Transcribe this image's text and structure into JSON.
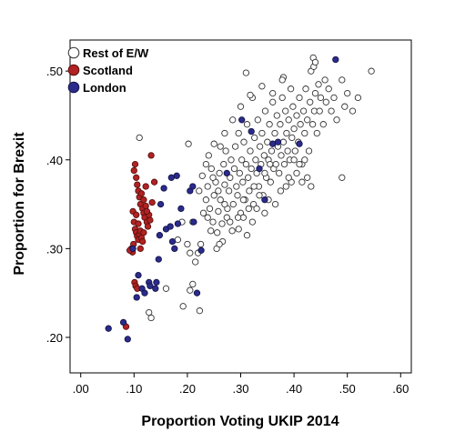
{
  "chart_data": {
    "type": "scatter",
    "title": "",
    "xlabel": "Proportion Voting UKIP 2014",
    "ylabel": "Proportion for Brexit",
    "xlim": [
      -0.02,
      0.62
    ],
    "ylim": [
      0.16,
      0.535
    ],
    "xticks": [
      0.0,
      0.1,
      0.2,
      0.3,
      0.4,
      0.5,
      0.6
    ],
    "xtick_labels": [
      ".00",
      ".10",
      ".20",
      ".30",
      ".40",
      ".50",
      ".60"
    ],
    "yticks": [
      0.2,
      0.3,
      0.4,
      0.5
    ],
    "ytick_labels": [
      ".20",
      ".30",
      ".40",
      ".50"
    ],
    "grid": false,
    "legend_position": "top-left",
    "series": [
      {
        "name": "Rest of E/W",
        "color": "#ffffff",
        "stroke": "#333333",
        "points": [
          [
            0.11,
            0.425
          ],
          [
            0.128,
            0.228
          ],
          [
            0.132,
            0.222
          ],
          [
            0.16,
            0.255
          ],
          [
            0.192,
            0.235
          ],
          [
            0.205,
            0.253
          ],
          [
            0.21,
            0.26
          ],
          [
            0.223,
            0.23
          ],
          [
            0.182,
            0.31
          ],
          [
            0.19,
            0.33
          ],
          [
            0.2,
            0.305
          ],
          [
            0.205,
            0.295
          ],
          [
            0.21,
            0.33
          ],
          [
            0.22,
            0.295
          ],
          [
            0.225,
            0.305
          ],
          [
            0.215,
            0.285
          ],
          [
            0.202,
            0.418
          ],
          [
            0.222,
            0.365
          ],
          [
            0.23,
            0.34
          ],
          [
            0.235,
            0.355
          ],
          [
            0.238,
            0.37
          ],
          [
            0.242,
            0.345
          ],
          [
            0.245,
            0.39
          ],
          [
            0.248,
            0.33
          ],
          [
            0.25,
            0.36
          ],
          [
            0.253,
            0.375
          ],
          [
            0.255,
            0.3
          ],
          [
            0.258,
            0.342
          ],
          [
            0.26,
            0.385
          ],
          [
            0.262,
            0.355
          ],
          [
            0.265,
            0.328
          ],
          [
            0.268,
            0.395
          ],
          [
            0.27,
            0.372
          ],
          [
            0.272,
            0.41
          ],
          [
            0.275,
            0.345
          ],
          [
            0.278,
            0.365
          ],
          [
            0.28,
            0.38
          ],
          [
            0.282,
            0.4
          ],
          [
            0.284,
            0.32
          ],
          [
            0.286,
            0.35
          ],
          [
            0.288,
            0.39
          ],
          [
            0.29,
            0.415
          ],
          [
            0.292,
            0.37
          ],
          [
            0.294,
            0.36
          ],
          [
            0.296,
            0.43
          ],
          [
            0.298,
            0.385
          ],
          [
            0.3,
            0.34
          ],
          [
            0.302,
            0.4
          ],
          [
            0.304,
            0.375
          ],
          [
            0.306,
            0.42
          ],
          [
            0.308,
            0.355
          ],
          [
            0.31,
            0.395
          ],
          [
            0.312,
            0.44
          ],
          [
            0.314,
            0.38
          ],
          [
            0.316,
            0.365
          ],
          [
            0.318,
            0.41
          ],
          [
            0.32,
            0.39
          ],
          [
            0.322,
            0.47
          ],
          [
            0.324,
            0.35
          ],
          [
            0.326,
            0.425
          ],
          [
            0.328,
            0.4
          ],
          [
            0.33,
            0.385
          ],
          [
            0.332,
            0.445
          ],
          [
            0.334,
            0.37
          ],
          [
            0.336,
            0.415
          ],
          [
            0.338,
            0.395
          ],
          [
            0.34,
            0.43
          ],
          [
            0.342,
            0.36
          ],
          [
            0.344,
            0.405
          ],
          [
            0.346,
            0.455
          ],
          [
            0.348,
            0.38
          ],
          [
            0.35,
            0.42
          ],
          [
            0.352,
            0.4
          ],
          [
            0.354,
            0.44
          ],
          [
            0.356,
            0.375
          ],
          [
            0.358,
            0.41
          ],
          [
            0.36,
            0.465
          ],
          [
            0.362,
            0.39
          ],
          [
            0.364,
            0.43
          ],
          [
            0.366,
            0.395
          ],
          [
            0.368,
            0.45
          ],
          [
            0.37,
            0.415
          ],
          [
            0.372,
            0.385
          ],
          [
            0.374,
            0.44
          ],
          [
            0.376,
            0.405
          ],
          [
            0.378,
            0.47
          ],
          [
            0.38,
            0.42
          ],
          [
            0.382,
            0.395
          ],
          [
            0.384,
            0.455
          ],
          [
            0.386,
            0.43
          ],
          [
            0.388,
            0.41
          ],
          [
            0.39,
            0.445
          ],
          [
            0.392,
            0.4
          ],
          [
            0.394,
            0.48
          ],
          [
            0.396,
            0.425
          ],
          [
            0.398,
            0.46
          ],
          [
            0.4,
            0.435
          ],
          [
            0.402,
            0.41
          ],
          [
            0.405,
            0.45
          ],
          [
            0.408,
            0.42
          ],
          [
            0.41,
            0.47
          ],
          [
            0.412,
            0.44
          ],
          [
            0.415,
            0.395
          ],
          [
            0.418,
            0.455
          ],
          [
            0.42,
            0.43
          ],
          [
            0.422,
            0.48
          ],
          [
            0.425,
            0.445
          ],
          [
            0.428,
            0.41
          ],
          [
            0.43,
            0.465
          ],
          [
            0.432,
            0.5
          ],
          [
            0.435,
            0.44
          ],
          [
            0.438,
            0.455
          ],
          [
            0.44,
            0.475
          ],
          [
            0.443,
            0.43
          ],
          [
            0.446,
            0.485
          ],
          [
            0.448,
            0.455
          ],
          [
            0.45,
            0.47
          ],
          [
            0.455,
            0.44
          ],
          [
            0.458,
            0.49
          ],
          [
            0.46,
            0.465
          ],
          [
            0.465,
            0.48
          ],
          [
            0.47,
            0.455
          ],
          [
            0.475,
            0.47
          ],
          [
            0.48,
            0.445
          ],
          [
            0.49,
            0.49
          ],
          [
            0.495,
            0.46
          ],
          [
            0.5,
            0.475
          ],
          [
            0.51,
            0.455
          ],
          [
            0.52,
            0.47
          ],
          [
            0.545,
            0.5
          ],
          [
            0.49,
            0.38
          ],
          [
            0.436,
            0.515
          ],
          [
            0.437,
            0.505
          ],
          [
            0.44,
            0.51
          ],
          [
            0.38,
            0.493
          ],
          [
            0.378,
            0.49
          ],
          [
            0.31,
            0.498
          ],
          [
            0.318,
            0.473
          ],
          [
            0.34,
            0.483
          ],
          [
            0.36,
            0.475
          ],
          [
            0.3,
            0.46
          ],
          [
            0.285,
            0.445
          ],
          [
            0.27,
            0.43
          ],
          [
            0.262,
            0.415
          ],
          [
            0.25,
            0.418
          ],
          [
            0.24,
            0.405
          ],
          [
            0.235,
            0.395
          ],
          [
            0.228,
            0.382
          ],
          [
            0.244,
            0.32
          ],
          [
            0.256,
            0.318
          ],
          [
            0.266,
            0.308
          ],
          [
            0.274,
            0.335
          ],
          [
            0.26,
            0.305
          ],
          [
            0.296,
            0.322
          ],
          [
            0.305,
            0.335
          ],
          [
            0.312,
            0.315
          ],
          [
            0.322,
            0.33
          ],
          [
            0.33,
            0.345
          ],
          [
            0.345,
            0.34
          ],
          [
            0.352,
            0.355
          ],
          [
            0.365,
            0.35
          ],
          [
            0.375,
            0.365
          ],
          [
            0.385,
            0.37
          ],
          [
            0.395,
            0.375
          ],
          [
            0.405,
            0.385
          ],
          [
            0.415,
            0.375
          ],
          [
            0.425,
            0.38
          ],
          [
            0.432,
            0.37
          ],
          [
            0.42,
            0.4
          ],
          [
            0.41,
            0.395
          ],
          [
            0.4,
            0.4
          ],
          [
            0.39,
            0.38
          ],
          [
            0.355,
            0.395
          ],
          [
            0.345,
            0.385
          ],
          [
            0.335,
            0.36
          ],
          [
            0.325,
            0.37
          ],
          [
            0.315,
            0.345
          ],
          [
            0.305,
            0.355
          ],
          [
            0.295,
            0.335
          ],
          [
            0.28,
            0.33
          ],
          [
            0.27,
            0.35
          ],
          [
            0.258,
            0.365
          ],
          [
            0.248,
            0.38
          ],
          [
            0.238,
            0.335
          ]
        ]
      },
      {
        "name": "Scotland",
        "color": "#b22222",
        "stroke": "#5a1010",
        "points": [
          [
            0.1,
            0.388
          ],
          [
            0.102,
            0.395
          ],
          [
            0.104,
            0.38
          ],
          [
            0.106,
            0.372
          ],
          [
            0.108,
            0.365
          ],
          [
            0.11,
            0.358
          ],
          [
            0.112,
            0.35
          ],
          [
            0.114,
            0.362
          ],
          [
            0.116,
            0.345
          ],
          [
            0.118,
            0.34
          ],
          [
            0.12,
            0.335
          ],
          [
            0.122,
            0.348
          ],
          [
            0.124,
            0.33
          ],
          [
            0.126,
            0.325
          ],
          [
            0.128,
            0.338
          ],
          [
            0.13,
            0.332
          ],
          [
            0.098,
            0.342
          ],
          [
            0.1,
            0.33
          ],
          [
            0.102,
            0.322
          ],
          [
            0.104,
            0.318
          ],
          [
            0.106,
            0.314
          ],
          [
            0.108,
            0.31
          ],
          [
            0.11,
            0.316
          ],
          [
            0.112,
            0.32
          ],
          [
            0.114,
            0.312
          ],
          [
            0.116,
            0.308
          ],
          [
            0.118,
            0.318
          ],
          [
            0.095,
            0.3
          ],
          [
            0.097,
            0.296
          ],
          [
            0.099,
            0.305
          ],
          [
            0.101,
            0.262
          ],
          [
            0.103,
            0.258
          ],
          [
            0.106,
            0.255
          ],
          [
            0.122,
            0.37
          ],
          [
            0.132,
            0.405
          ],
          [
            0.138,
            0.375
          ],
          [
            0.134,
            0.352
          ],
          [
            0.092,
            0.298
          ],
          [
            0.085,
            0.212
          ],
          [
            0.112,
            0.3
          ],
          [
            0.108,
            0.328
          ],
          [
            0.104,
            0.338
          ],
          [
            0.118,
            0.355
          ],
          [
            0.124,
            0.342
          ]
        ]
      },
      {
        "name": "London",
        "color": "#2b2b8c",
        "stroke": "#14144a",
        "points": [
          [
            0.052,
            0.21
          ],
          [
            0.08,
            0.217
          ],
          [
            0.088,
            0.198
          ],
          [
            0.098,
            0.3
          ],
          [
            0.105,
            0.245
          ],
          [
            0.108,
            0.27
          ],
          [
            0.115,
            0.255
          ],
          [
            0.12,
            0.25
          ],
          [
            0.128,
            0.262
          ],
          [
            0.13,
            0.258
          ],
          [
            0.14,
            0.255
          ],
          [
            0.142,
            0.262
          ],
          [
            0.146,
            0.288
          ],
          [
            0.148,
            0.315
          ],
          [
            0.15,
            0.35
          ],
          [
            0.156,
            0.368
          ],
          [
            0.16,
            0.322
          ],
          [
            0.168,
            0.325
          ],
          [
            0.172,
            0.308
          ],
          [
            0.176,
            0.3
          ],
          [
            0.182,
            0.328
          ],
          [
            0.188,
            0.345
          ],
          [
            0.205,
            0.365
          ],
          [
            0.21,
            0.37
          ],
          [
            0.212,
            0.33
          ],
          [
            0.218,
            0.25
          ],
          [
            0.226,
            0.298
          ],
          [
            0.18,
            0.382
          ],
          [
            0.274,
            0.385
          ],
          [
            0.302,
            0.445
          ],
          [
            0.32,
            0.432
          ],
          [
            0.335,
            0.39
          ],
          [
            0.345,
            0.355
          ],
          [
            0.36,
            0.418
          ],
          [
            0.37,
            0.42
          ],
          [
            0.41,
            0.418
          ],
          [
            0.478,
            0.513
          ],
          [
            0.17,
            0.38
          ]
        ]
      }
    ]
  }
}
